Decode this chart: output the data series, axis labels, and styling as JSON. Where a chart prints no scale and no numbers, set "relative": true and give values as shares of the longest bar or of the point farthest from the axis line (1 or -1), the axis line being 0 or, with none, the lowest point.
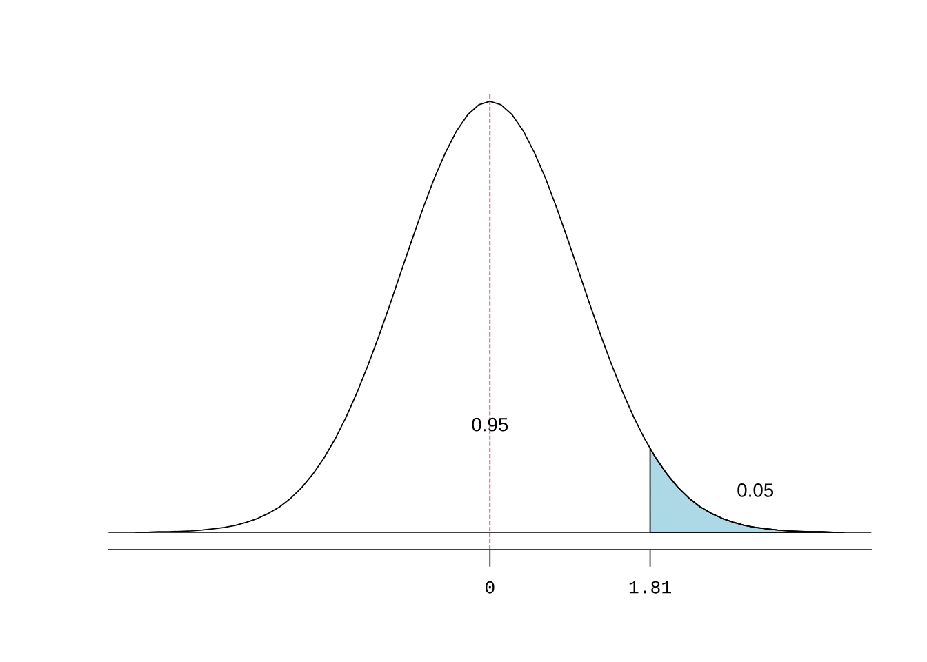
{
  "chart_data": {
    "type": "line",
    "relative": true,
    "x": [
      -4,
      -3.875,
      -3.75,
      -3.625,
      -3.5,
      -3.375,
      -3.25,
      -3.125,
      -3,
      -2.875,
      -2.75,
      -2.625,
      -2.5,
      -2.375,
      -2.25,
      -2.125,
      -2,
      -1.875,
      -1.75,
      -1.625,
      -1.5,
      -1.375,
      -1.25,
      -1.125,
      -1,
      -0.875,
      -0.75,
      -0.625,
      -0.5,
      -0.375,
      -0.25,
      -0.125,
      0,
      0.125,
      0.25,
      0.375,
      0.5,
      0.625,
      0.75,
      0.875,
      1,
      1.125,
      1.25,
      1.375,
      1.5,
      1.625,
      1.75,
      1.875,
      2,
      2.125,
      2.25,
      2.375,
      2.5,
      2.625,
      2.75,
      2.875,
      3,
      3.125,
      3.25,
      3.375,
      3.5,
      3.625,
      3.75,
      3.875,
      4
    ],
    "xlim": [
      -4.31,
      4.31
    ],
    "xticks": [
      0,
      1.81
    ],
    "tick_labels": "x",
    "grid": false,
    "legend": false,
    "series": [
      {
        "color": "#000000",
        "values": [
          0,
          0,
          0.001,
          0.001,
          0.002,
          0.003,
          0.005,
          0.008,
          0.011,
          0.016,
          0.023,
          0.032,
          0.044,
          0.059,
          0.079,
          0.104,
          0.135,
          0.172,
          0.216,
          0.267,
          0.325,
          0.389,
          0.458,
          0.531,
          0.607,
          0.682,
          0.755,
          0.823,
          0.882,
          0.932,
          0.969,
          0.992,
          1,
          0.992,
          0.969,
          0.932,
          0.882,
          0.823,
          0.755,
          0.682,
          0.607,
          0.531,
          0.458,
          0.389,
          0.325,
          0.267,
          0.216,
          0.172,
          0.135,
          0.104,
          0.079,
          0.059,
          0.044,
          0.032,
          0.023,
          0.016,
          0.011,
          0.008,
          0.005,
          0.003,
          0.002,
          0.001,
          0.001,
          0,
          0
        ]
      },
      {
        "type": "area",
        "color": "#add8e6",
        "x": [
          1.81,
          1.875,
          2,
          2.125,
          2.25,
          2.375,
          2.5,
          2.625,
          2.75,
          2.875,
          3,
          3.125,
          3.25,
          3.375,
          3.5,
          3.625,
          3.75,
          3.875,
          4
        ],
        "values": [
          0.194,
          0.172,
          0.135,
          0.104,
          0.079,
          0.059,
          0.044,
          0.032,
          0.023,
          0.016,
          0.011,
          0.008,
          0.005,
          0.003,
          0.002,
          0.001,
          0.001,
          0,
          0
        ]
      }
    ],
    "ref_lines": [
      {
        "axis": "x",
        "value": 0,
        "color": "#dc143c",
        "line_style": "dashed"
      },
      {
        "axis": "y",
        "value": 0,
        "color": "#000000",
        "line_style": "solid"
      }
    ],
    "annotations": [
      {
        "text": "0.95",
        "x": 0,
        "y": 0.246
      },
      "0.05"
    ]
  }
}
